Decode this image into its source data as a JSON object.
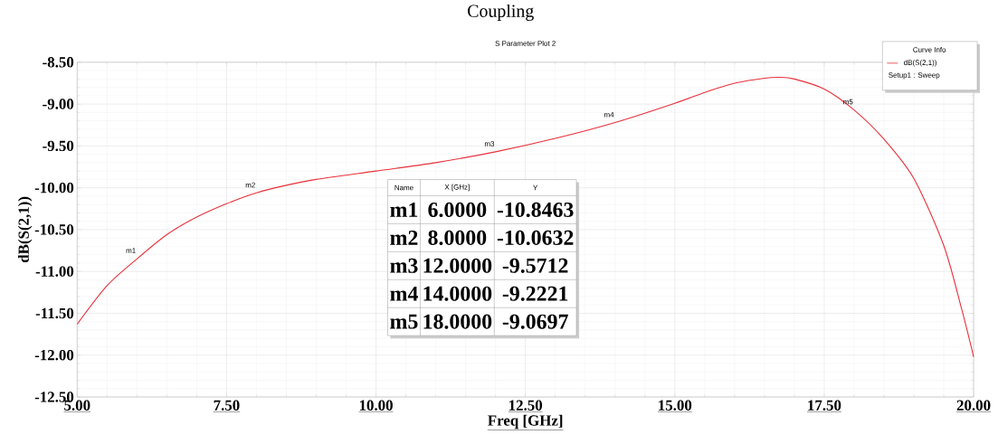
{
  "chart_data": {
    "type": "line",
    "title": "Coupling",
    "subtitle": "S Parameter Plot 2",
    "xlabel": "Freq [GHz]",
    "ylabel": "dB(S(2,1))",
    "legend_title": "Curve Info",
    "x": [
      5.0,
      5.5,
      6.0,
      6.5,
      7.0,
      7.5,
      8.0,
      8.5,
      9.0,
      10.0,
      11.0,
      12.0,
      13.0,
      14.0,
      15.0,
      15.5,
      16.0,
      16.5,
      16.75,
      17.0,
      17.5,
      18.0,
      18.5,
      19.0,
      19.5,
      19.8,
      20.0
    ],
    "series": [
      {
        "name": "dB(S(2,1))",
        "color": "#e8303a",
        "values": [
          -11.63,
          -11.17,
          -10.85,
          -10.56,
          -10.35,
          -10.19,
          -10.06,
          -9.97,
          -9.9,
          -9.8,
          -9.7,
          -9.57,
          -9.41,
          -9.22,
          -8.99,
          -8.86,
          -8.75,
          -8.69,
          -8.68,
          -8.7,
          -8.82,
          -9.07,
          -9.42,
          -9.89,
          -10.69,
          -11.45,
          -12.02
        ]
      }
    ],
    "xlim": [
      5,
      20
    ],
    "ylim": [
      -12.5,
      -8.5
    ],
    "xticks": [
      {
        "value": 5,
        "label": "5.00"
      },
      {
        "value": 7.5,
        "label": "7.50"
      },
      {
        "value": 10,
        "label": "10.00"
      },
      {
        "value": 12.5,
        "label": "12.50"
      },
      {
        "value": 15,
        "label": "15.00"
      },
      {
        "value": 17.5,
        "label": "17.50"
      },
      {
        "value": 20,
        "label": "20.00"
      }
    ],
    "yticks": [
      {
        "value": -12.5,
        "label": "-12.50"
      },
      {
        "value": -12,
        "label": "-12.00"
      },
      {
        "value": -11.5,
        "label": "-11.50"
      },
      {
        "value": -11,
        "label": "-11.00"
      },
      {
        "value": -10.5,
        "label": "-10.50"
      },
      {
        "value": -10,
        "label": "-10.00"
      },
      {
        "value": -9.5,
        "label": "-9.50"
      },
      {
        "value": -9,
        "label": "-9.00"
      },
      {
        "value": -8.5,
        "label": "-8.50"
      }
    ],
    "grid": true,
    "legend": "top right",
    "marker": "none",
    "line_style": "solid",
    "annotations": [
      {
        "text": "m1",
        "x": 6,
        "y": -10.8463
      },
      {
        "text": "m2",
        "x": 8,
        "y": -10.0632
      },
      {
        "text": "m3",
        "x": 12,
        "y": -9.5712
      },
      {
        "text": "m4",
        "x": 14,
        "y": -9.2221
      },
      {
        "text": "m5",
        "x": 18,
        "y": -9.0697
      },
      "Setup1 : Sweep",
      "Name",
      "X [GHz]",
      "Y",
      "m1",
      "6.0000",
      "-10.8463",
      "m2",
      "8.0000",
      "-10.0632",
      "m3",
      "12.0000",
      "-9.5712",
      "m4",
      "14.0000",
      "-9.2221",
      "m5",
      "18.0000",
      "-9.0697"
    ]
  }
}
